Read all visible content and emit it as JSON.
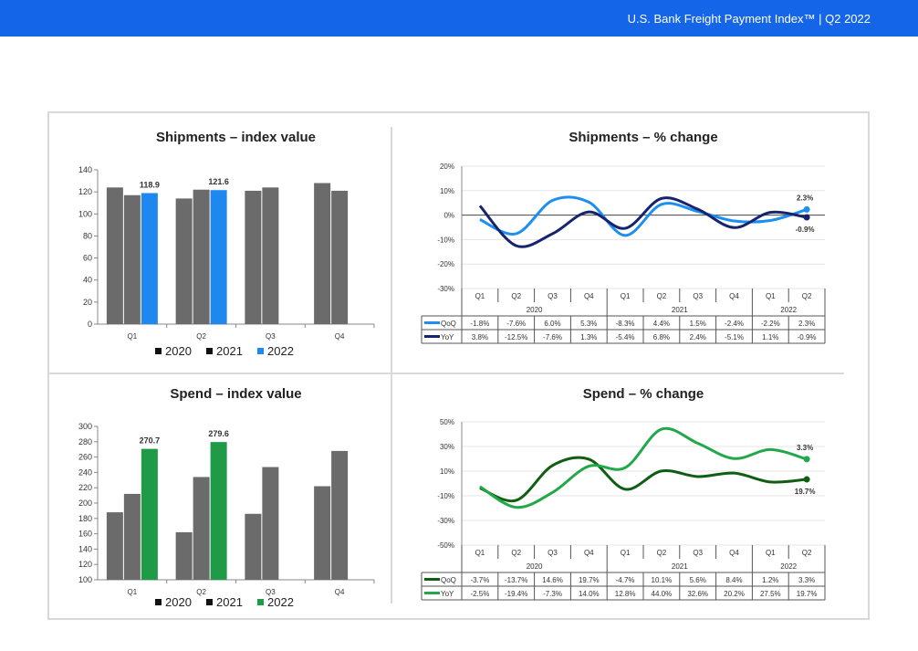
{
  "header": {
    "title": "U.S. Bank Freight Payment Index™   |   Q2 2022"
  },
  "colors": {
    "topbar": "#1565e8",
    "gray": "#6b6b6b",
    "blue_2022": "#1e88f0",
    "green_2022": "#1f9a46",
    "qoq_blue": "#1e8ff0",
    "yoy_navy": "#16246e",
    "qoq_green": "#0f5e12",
    "yoy_green": "#22a84a"
  },
  "chart_data": [
    {
      "type": "bar",
      "title": "Shipments – index value",
      "categories": [
        "Q1",
        "Q2",
        "Q3",
        "Q4"
      ],
      "series": [
        {
          "name": "2020",
          "values": [
            124,
            114,
            121,
            128
          ]
        },
        {
          "name": "2021",
          "values": [
            117,
            122,
            124,
            121
          ]
        },
        {
          "name": "2022",
          "values": [
            118.9,
            121.6,
            null,
            null
          ]
        }
      ],
      "data_labels": [
        "118.9",
        "121.6"
      ],
      "ylim": [
        0,
        140
      ],
      "yticks": [
        0,
        20,
        40,
        60,
        80,
        100,
        120,
        140
      ],
      "legend": [
        "2020",
        "2021",
        "2022"
      ],
      "legend_position": "bottom"
    },
    {
      "type": "line",
      "title": "Shipments – % change",
      "x": [
        "Q1",
        "Q2",
        "Q3",
        "Q4",
        "Q1",
        "Q2",
        "Q3",
        "Q4",
        "Q1",
        "Q2"
      ],
      "years": [
        "2020",
        "2021",
        "2022"
      ],
      "series": [
        {
          "name": "QoQ",
          "values": [
            -1.8,
            -7.6,
            6.0,
            5.3,
            -8.3,
            4.4,
            1.5,
            -2.4,
            -2.2,
            2.3
          ],
          "labels": [
            "-1.8%",
            "-7.6%",
            "6.0%",
            "5.3%",
            "-8.3%",
            "4.4%",
            "1.5%",
            "-2.4%",
            "-2.2%",
            "2.3%"
          ]
        },
        {
          "name": "YoY",
          "values": [
            3.8,
            -12.5,
            -7.6,
            1.3,
            -5.4,
            6.8,
            2.4,
            -5.1,
            1.1,
            -0.9
          ],
          "labels": [
            "3.8%",
            "-12.5%",
            "-7.6%",
            "1.3%",
            "-5.4%",
            "6.8%",
            "2.4%",
            "-5.1%",
            "1.1%",
            "-0.9%"
          ]
        }
      ],
      "end_labels": [
        "2.3%",
        "-0.9%"
      ],
      "ylim": [
        -30,
        20
      ],
      "yticks": [
        "20%",
        "10%",
        "0%",
        "-10%",
        "-20%",
        "-30%"
      ],
      "grid": true,
      "legend_position": "table"
    },
    {
      "type": "bar",
      "title": "Spend – index value",
      "categories": [
        "Q1",
        "Q2",
        "Q3",
        "Q4"
      ],
      "series": [
        {
          "name": "2020",
          "values": [
            188,
            162,
            186,
            222
          ]
        },
        {
          "name": "2021",
          "values": [
            212,
            234,
            247,
            268
          ]
        },
        {
          "name": "2022",
          "values": [
            270.7,
            279.6,
            null,
            null
          ]
        }
      ],
      "data_labels": [
        "270.7",
        "279.6"
      ],
      "ylim": [
        100,
        300
      ],
      "yticks": [
        100,
        120,
        140,
        160,
        180,
        200,
        220,
        240,
        260,
        280,
        300
      ],
      "legend": [
        "2020",
        "2021",
        "2022"
      ],
      "legend_position": "bottom"
    },
    {
      "type": "line",
      "title": "Spend – % change",
      "x": [
        "Q1",
        "Q2",
        "Q3",
        "Q4",
        "Q1",
        "Q2",
        "Q3",
        "Q4",
        "Q1",
        "Q2"
      ],
      "years": [
        "2020",
        "2021",
        "2022"
      ],
      "series": [
        {
          "name": "QoQ",
          "values": [
            -3.7,
            -13.7,
            14.6,
            19.7,
            -4.7,
            10.1,
            5.6,
            8.4,
            1.2,
            3.3
          ],
          "labels": [
            "-3.7%",
            "-13.7%",
            "14.6%",
            "19.7%",
            "-4.7%",
            "10.1%",
            "5.6%",
            "8.4%",
            "1.2%",
            "3.3%"
          ]
        },
        {
          "name": "YoY",
          "values": [
            -2.5,
            -19.4,
            -7.3,
            14.0,
            12.8,
            44.0,
            32.6,
            20.2,
            27.5,
            19.7
          ],
          "labels": [
            "-2.5%",
            "-19.4%",
            "-7.3%",
            "14.0%",
            "12.8%",
            "44.0%",
            "32.6%",
            "20.2%",
            "27.5%",
            "19.7%"
          ]
        }
      ],
      "end_labels": [
        "19.7%",
        "3.3%"
      ],
      "ylim": [
        -50,
        50
      ],
      "yticks": [
        "50%",
        "30%",
        "10%",
        "-10%",
        "-30%",
        "-50%"
      ],
      "grid": true,
      "legend_position": "table"
    }
  ]
}
